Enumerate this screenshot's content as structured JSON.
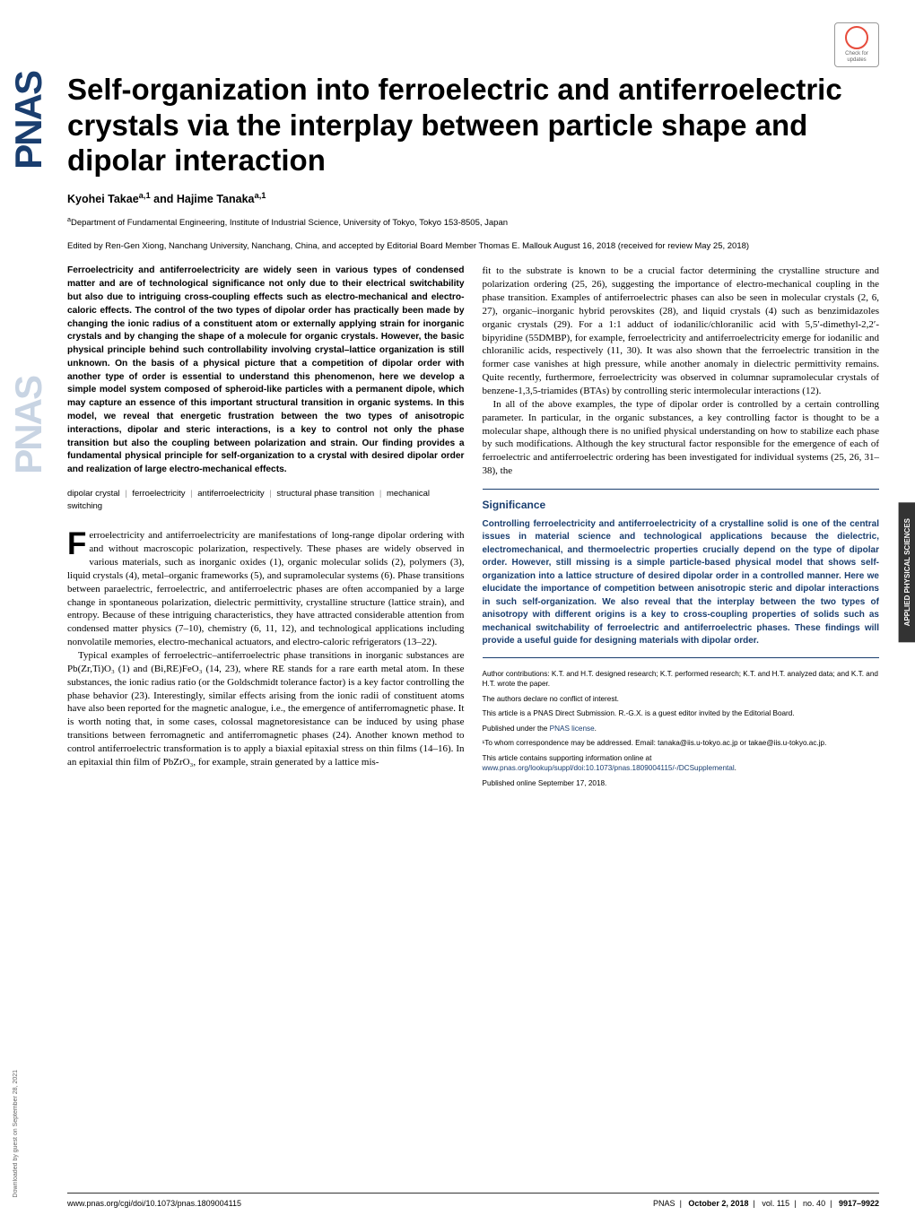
{
  "journal_logo": "PNAS",
  "download_note": "Downloaded by guest on September 28, 2021",
  "crossmark_text": "Check for updates",
  "title": "Self-organization into ferroelectric and antiferroelectric crystals via the interplay between particle shape and dipolar interaction",
  "authors_html": "Kyohei Takae<sup>a,1</sup> and Hajime Tanaka<sup>a,1</sup>",
  "affiliation_html": "<sup>a</sup>Department of Fundamental Engineering, Institute of Industrial Science, University of Tokyo, Tokyo 153-8505, Japan",
  "edited_by": "Edited by Ren-Gen Xiong, Nanchang University, Nanchang, China, and accepted by Editorial Board Member Thomas E. Mallouk August 16, 2018 (received for review May 25, 2018)",
  "abstract": "Ferroelectricity and antiferroelectricity are widely seen in various types of condensed matter and are of technological significance not only due to their electrical switchability but also due to intriguing cross-coupling effects such as electro-mechanical and electro-caloric effects. The control of the two types of dipolar order has practically been made by changing the ionic radius of a constituent atom or externally applying strain for inorganic crystals and by changing the shape of a molecule for organic crystals. However, the basic physical principle behind such controllability involving crystal–lattice organization is still unknown. On the basis of a physical picture that a competition of dipolar order with another type of order is essential to understand this phenomenon, here we develop a simple model system composed of spheroid-like particles with a permanent dipole, which may capture an essence of this important structural transition in organic systems. In this model, we reveal that energetic frustration between the two types of anisotropic interactions, dipolar and steric interactions, is a key to control not only the phase transition but also the coupling between polarization and strain. Our finding provides a fundamental physical principle for self-organization to a crystal with desired dipolar order and realization of large electro-mechanical effects.",
  "keywords": [
    "dipolar crystal",
    "ferroelectricity",
    "antiferroelectricity",
    "structural phase transition",
    "mechanical switching"
  ],
  "body_col1_p1_dropcap": "F",
  "body_col1_p1": "erroelectricity and antiferroelectricity are manifestations of long-range dipolar ordering with and without macroscopic polarization, respectively. These phases are widely observed in various materials, such as inorganic oxides (1), organic molecular solids (2), polymers (3), liquid crystals (4), metal–organic frameworks (5), and supramolecular systems (6). Phase transitions between paraelectric, ferroelectric, and antiferroelectric phases are often accompanied by a large change in spontaneous polarization, dielectric permittivity, crystalline structure (lattice strain), and entropy. Because of these intriguing characteristics, they have attracted considerable attention from condensed matter physics (7–10), chemistry (6, 11, 12), and technological applications including nonvolatile memories, electro-mechanical actuators, and electro-caloric refrigerators (13–22).",
  "body_col1_p2": "Typical examples of ferroelectric–antiferroelectric phase transitions in inorganic substances are Pb(Zr,Ti)O₃ (1) and (Bi,RE)FeO₃ (14, 23), where RE stands for a rare earth metal atom. In these substances, the ionic radius ratio (or the Goldschmidt tolerance factor) is a key factor controlling the phase behavior (23). Interestingly, similar effects arising from the ionic radii of constituent atoms have also been reported for the magnetic analogue, i.e., the emergence of antiferromagnetic phase. It is worth noting that, in some cases, colossal magnetoresistance can be induced by using phase transitions between ferromagnetic and antiferromagnetic phases (24). Another known method to control antiferroelectric transformation is to apply a biaxial epitaxial stress on thin films (14–16). In an epitaxial thin film of PbZrO₃, for example, strain generated by a lattice mis-",
  "body_col2_p1": "fit to the substrate is known to be a crucial factor determining the crystalline structure and polarization ordering (25, 26), suggesting the importance of electro-mechanical coupling in the phase transition. Examples of antiferroelectric phases can also be seen in molecular crystals (2, 6, 27), organic–inorganic hybrid perovskites (28), and liquid crystals (4) such as benzimidazoles organic crystals (29). For a 1:1 adduct of iodanilic/chloranilic acid with 5,5′-dimethyl-2,2′-bipyridine (55DMBP), for example, ferroelectricity and antiferroelectricity emerge for iodanilic and chloranilic acids, respectively (11, 30). It was also shown that the ferroelectric transition in the former case vanishes at high pressure, while another anomaly in dielectric permittivity remains. Quite recently, furthermore, ferroelectricity was observed in columnar supramolecular crystals of benzene-1,3,5-triamides (BTAs) by controlling steric intermolecular interactions (12).",
  "body_col2_p2": "In all of the above examples, the type of dipolar order is controlled by a certain controlling parameter. In particular, in the organic substances, a key controlling factor is thought to be a molecular shape, although there is no unified physical understanding on how to stabilize each phase by such modifications. Although the key structural factor responsible for the emergence of each of ferroelectric and antiferroelectric ordering has been investigated for individual systems (25, 26, 31–38), the",
  "significance_title": "Significance",
  "significance_text": "Controlling ferroelectricity and antiferroelectricity of a crystalline solid is one of the central issues in material science and technological applications because the dielectric, electromechanical, and thermoelectric properties crucially depend on the type of dipolar order. However, still missing is a simple particle-based physical model that shows self-organization into a lattice structure of desired dipolar order in a controlled manner. Here we elucidate the importance of competition between anisotropic steric and dipolar interactions in such self-organization. We also reveal that the interplay between the two types of anisotropy with different origins is a key to cross-coupling properties of solids such as mechanical switchability of ferroelectric and antiferroelectric phases. These findings will provide a useful guide for designing materials with dipolar order.",
  "footnote_contributions": "Author contributions: K.T. and H.T. designed research; K.T. performed research; K.T. and H.T. analyzed data; and K.T. and H.T. wrote the paper.",
  "footnote_conflict": "The authors declare no conflict of interest.",
  "footnote_submission": "This article is a PNAS Direct Submission. R.-G.X. is a guest editor invited by the Editorial Board.",
  "footnote_license_prefix": "Published under the ",
  "footnote_license_link": "PNAS license",
  "footnote_correspondence": "¹To whom correspondence may be addressed. Email: tanaka@iis.u-tokyo.ac.jp or takae@iis.u-tokyo.ac.jp.",
  "footnote_supporting_prefix": "This article contains supporting information online at ",
  "footnote_supporting_link": "www.pnas.org/lookup/suppl/doi:10.1073/pnas.1809004115/-/DCSupplemental",
  "footnote_published": "Published online September 17, 2018.",
  "side_tab": "APPLIED PHYSICAL SCIENCES",
  "footer_doi": "www.pnas.org/cgi/doi/10.1073/pnas.1809004115",
  "footer_journal": "PNAS",
  "footer_date": "October 2, 2018",
  "footer_vol": "vol. 115",
  "footer_no": "no. 40",
  "footer_pages": "9917–9922"
}
